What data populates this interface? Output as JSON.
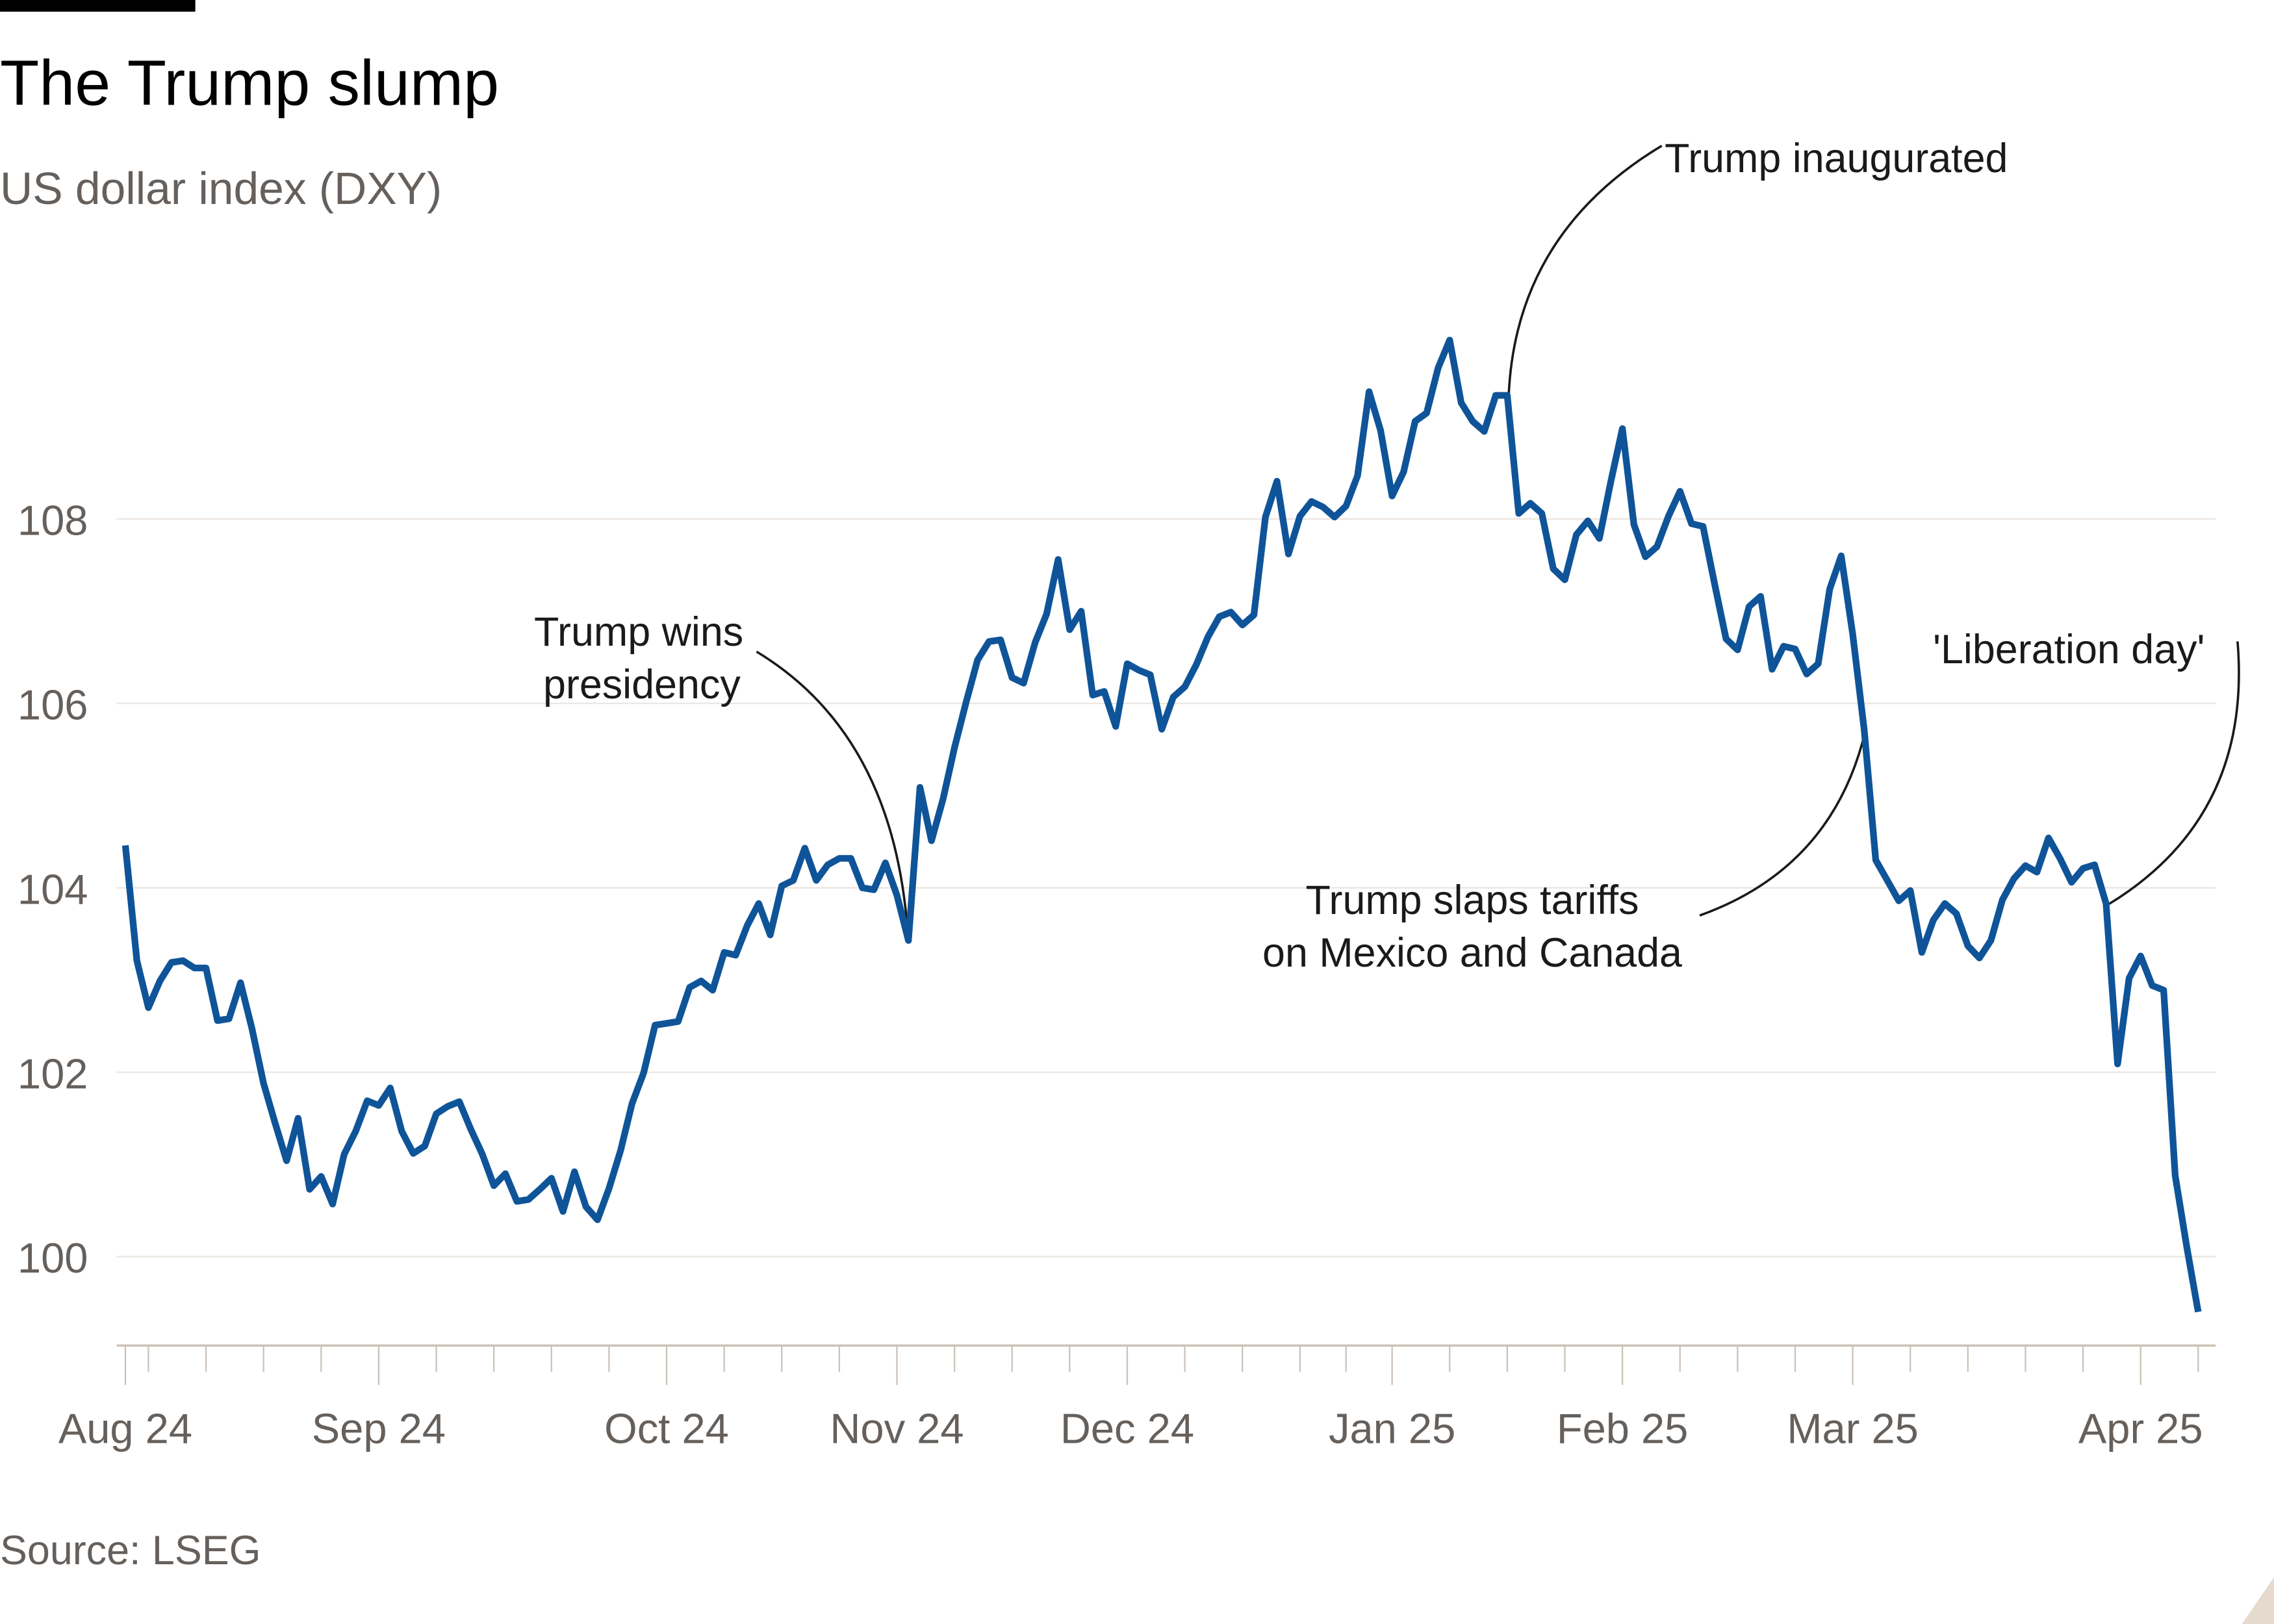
{
  "header": {
    "title": "The Trump slump",
    "subtitle": "US dollar index (DXY)"
  },
  "footer": {
    "source": "Source: LSEG"
  },
  "colors": {
    "line": "#0f5499",
    "grid": "#ebe5df",
    "axis": "#ccc1b7",
    "text_muted": "#66605c",
    "annotation": "#1a1a1a",
    "brand_bar": "#000000",
    "corner": "#e6d9ce"
  },
  "chart_data": {
    "type": "line",
    "title": "The Trump slump",
    "subtitle": "US dollar index (DXY)",
    "xlabel": "",
    "ylabel": "",
    "ylim": [
      99.3,
      110.2
    ],
    "y_ticks": [
      100,
      102,
      104,
      106,
      108
    ],
    "y_tick_labels": [
      "100",
      "102",
      "104",
      "106",
      "108"
    ],
    "x_tick_labels": [
      {
        "label": "Aug 24",
        "date": "2024-08-01"
      },
      {
        "label": "Sep 24",
        "date": "2024-09-02"
      },
      {
        "label": "Oct 24",
        "date": "2024-10-07"
      },
      {
        "label": "Nov 24",
        "date": "2024-11-04"
      },
      {
        "label": "Dec 24",
        "date": "2024-12-02"
      },
      {
        "label": "Jan 25",
        "date": "2025-01-06"
      },
      {
        "label": "Feb 25",
        "date": "2025-02-03"
      },
      {
        "label": "Mar 25",
        "date": "2025-03-03"
      },
      {
        "label": "Apr 25",
        "date": "2025-04-07"
      }
    ],
    "grid": "horizontal",
    "legend": "none",
    "annotations": [
      {
        "lines": [
          "Trump wins",
          "presidency"
        ],
        "date": "2024-11-06"
      },
      {
        "lines": [
          "Trump inaugurated"
        ],
        "date": "2025-01-20"
      },
      {
        "lines": [
          "Trump slaps tariffs",
          "on Mexico and Canada"
        ],
        "date": "2025-03-04"
      },
      {
        "lines": [
          "'Liberation day'"
        ],
        "date": "2025-04-02"
      }
    ],
    "x": [
      "2024-08-01",
      "2024-08-02",
      "2024-08-05",
      "2024-08-06",
      "2024-08-07",
      "2024-08-08",
      "2024-08-09",
      "2024-08-12",
      "2024-08-13",
      "2024-08-14",
      "2024-08-15",
      "2024-08-16",
      "2024-08-19",
      "2024-08-20",
      "2024-08-21",
      "2024-08-22",
      "2024-08-23",
      "2024-08-26",
      "2024-08-27",
      "2024-08-28",
      "2024-08-29",
      "2024-08-30",
      "2024-09-02",
      "2024-09-03",
      "2024-09-04",
      "2024-09-05",
      "2024-09-06",
      "2024-09-09",
      "2024-09-10",
      "2024-09-11",
      "2024-09-12",
      "2024-09-13",
      "2024-09-16",
      "2024-09-17",
      "2024-09-18",
      "2024-09-19",
      "2024-09-20",
      "2024-09-23",
      "2024-09-24",
      "2024-09-25",
      "2024-09-26",
      "2024-09-27",
      "2024-09-30",
      "2024-10-01",
      "2024-10-02",
      "2024-10-03",
      "2024-10-04",
      "2024-10-07",
      "2024-10-08",
      "2024-10-09",
      "2024-10-10",
      "2024-10-11",
      "2024-10-14",
      "2024-10-15",
      "2024-10-16",
      "2024-10-17",
      "2024-10-18",
      "2024-10-21",
      "2024-10-22",
      "2024-10-23",
      "2024-10-24",
      "2024-10-25",
      "2024-10-28",
      "2024-10-29",
      "2024-10-30",
      "2024-10-31",
      "2024-11-01",
      "2024-11-04",
      "2024-11-05",
      "2024-11-06",
      "2024-11-07",
      "2024-11-08",
      "2024-11-11",
      "2024-11-12",
      "2024-11-13",
      "2024-11-14",
      "2024-11-15",
      "2024-11-18",
      "2024-11-19",
      "2024-11-20",
      "2024-11-21",
      "2024-11-22",
      "2024-11-25",
      "2024-11-26",
      "2024-11-27",
      "2024-11-28",
      "2024-11-29",
      "2024-12-02",
      "2024-12-03",
      "2024-12-04",
      "2024-12-05",
      "2024-12-06",
      "2024-12-09",
      "2024-12-10",
      "2024-12-11",
      "2024-12-12",
      "2024-12-13",
      "2024-12-16",
      "2024-12-17",
      "2024-12-18",
      "2024-12-19",
      "2024-12-20",
      "2024-12-23",
      "2024-12-24",
      "2024-12-26",
      "2024-12-27",
      "2024-12-30",
      "2024-12-31",
      "2025-01-02",
      "2025-01-03",
      "2025-01-06",
      "2025-01-07",
      "2025-01-08",
      "2025-01-09",
      "2025-01-10",
      "2025-01-13",
      "2025-01-14",
      "2025-01-15",
      "2025-01-16",
      "2025-01-17",
      "2025-01-20",
      "2025-01-21",
      "2025-01-22",
      "2025-01-23",
      "2025-01-24",
      "2025-01-27",
      "2025-01-28",
      "2025-01-29",
      "2025-01-30",
      "2025-01-31",
      "2025-02-03",
      "2025-02-04",
      "2025-02-05",
      "2025-02-06",
      "2025-02-07",
      "2025-02-10",
      "2025-02-11",
      "2025-02-12",
      "2025-02-13",
      "2025-02-14",
      "2025-02-17",
      "2025-02-18",
      "2025-02-19",
      "2025-02-20",
      "2025-02-21",
      "2025-02-24",
      "2025-02-25",
      "2025-02-26",
      "2025-02-27",
      "2025-02-28",
      "2025-03-03",
      "2025-03-04",
      "2025-03-05",
      "2025-03-06",
      "2025-03-07",
      "2025-03-10",
      "2025-03-11",
      "2025-03-12",
      "2025-03-13",
      "2025-03-14",
      "2025-03-17",
      "2025-03-18",
      "2025-03-19",
      "2025-03-20",
      "2025-03-21",
      "2025-03-24",
      "2025-03-25",
      "2025-03-26",
      "2025-03-27",
      "2025-03-28",
      "2025-03-31",
      "2025-04-01",
      "2025-04-02",
      "2025-04-03",
      "2025-04-04",
      "2025-04-07",
      "2025-04-08",
      "2025-04-09",
      "2025-04-10",
      "2025-04-11",
      "2025-04-14"
    ],
    "series": [
      {
        "values": [
          104.46,
          103.21,
          102.7,
          102.99,
          103.19,
          103.21,
          103.13,
          103.13,
          102.56,
          102.58,
          102.97,
          102.47,
          101.88,
          101.45,
          101.04,
          101.5,
          100.73,
          100.87,
          100.57,
          101.11,
          101.36,
          101.69,
          101.64,
          101.83,
          101.36,
          101.12,
          101.2,
          101.55,
          101.63,
          101.68,
          101.38,
          101.11,
          100.77,
          100.9,
          100.6,
          100.62,
          100.73,
          100.85,
          100.49,
          100.92,
          100.54,
          100.4,
          100.74,
          101.15,
          101.66,
          101.99,
          102.51,
          102.53,
          102.55,
          102.92,
          102.99,
          102.89,
          103.3,
          103.27,
          103.59,
          103.83,
          103.49,
          104.02,
          104.08,
          104.43,
          104.08,
          104.25,
          104.32,
          104.32,
          104.0,
          103.98,
          104.27,
          103.92,
          103.43,
          105.09,
          104.51,
          104.96,
          105.52,
          106.01,
          106.47,
          106.67,
          106.69,
          106.28,
          106.22,
          106.66,
          106.97,
          107.56,
          106.8,
          107.0,
          106.09,
          106.13,
          105.75,
          106.43,
          106.36,
          106.31,
          105.72,
          106.07,
          106.18,
          106.42,
          106.72,
          106.94,
          106.99,
          106.85,
          106.96,
          108.02,
          108.41,
          107.62,
          108.03,
          108.19,
          108.13,
          108.02,
          108.14,
          108.47,
          109.38,
          108.96,
          108.25,
          108.51,
          109.06,
          109.15,
          109.64,
          109.94,
          109.26,
          109.06,
          108.95,
          109.34,
          109.34,
          108.06,
          108.17,
          108.06,
          107.46,
          107.34,
          107.83,
          107.98,
          107.79,
          108.41,
          108.98,
          107.94,
          107.59,
          107.7,
          108.03,
          108.3,
          107.95,
          107.92,
          107.3,
          106.7,
          106.58,
          107.05,
          107.16,
          106.37,
          106.62,
          106.59,
          106.32,
          106.43,
          107.24,
          107.6,
          106.75,
          105.71,
          104.3,
          104.08,
          103.86,
          103.97,
          103.3,
          103.65,
          103.83,
          103.72,
          103.37,
          103.24,
          103.43,
          103.87,
          104.1,
          104.24,
          104.17,
          104.54,
          104.32,
          104.06,
          104.21,
          104.25,
          103.83,
          102.09,
          103.02,
          103.26,
          102.94,
          102.89,
          100.88,
          100.11,
          99.4
        ]
      }
    ]
  }
}
